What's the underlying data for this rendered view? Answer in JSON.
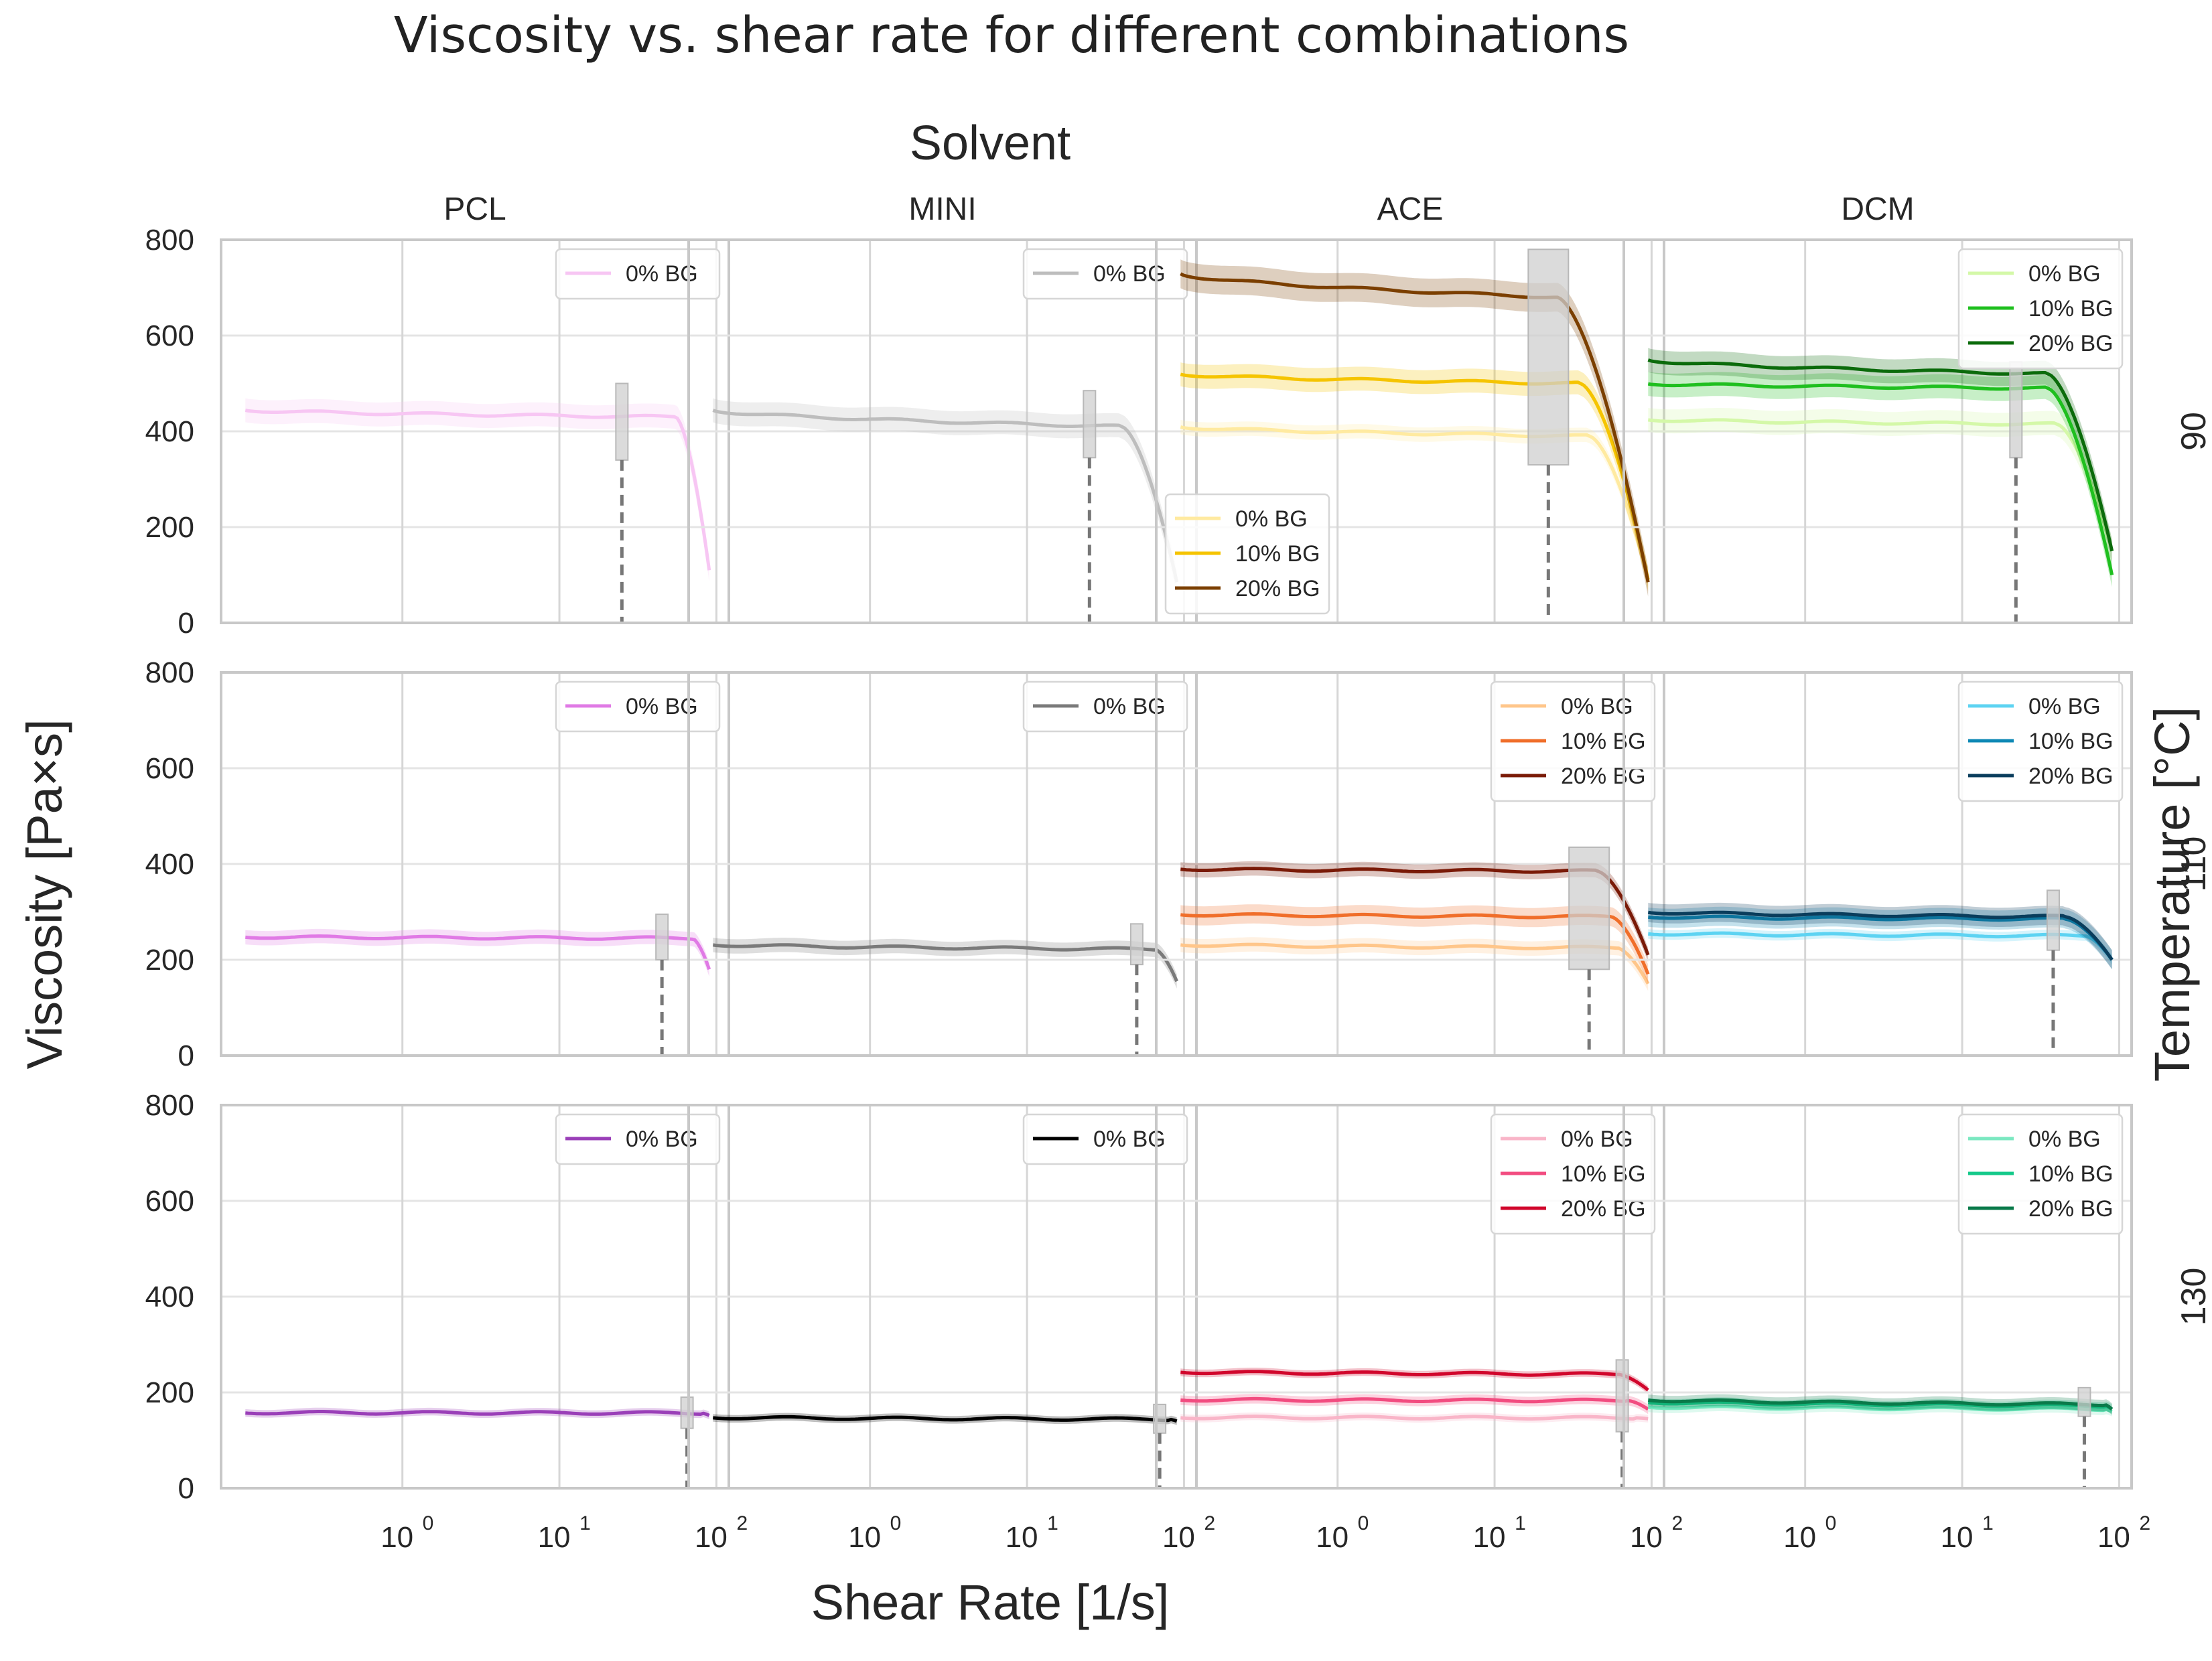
{
  "chart_data": {
    "type": "line",
    "title": "Viscosity vs. shear rate for different combinations",
    "col_header": "Solvent",
    "row_header": "Temperature [°C]",
    "xlabel": "Shear Rate [1/s]",
    "ylabel": "Viscosity [Pa×s]",
    "xscale": "log",
    "xlim": [
      0.07,
      120
    ],
    "ylim": [
      0,
      800
    ],
    "yticks": [
      "0",
      "200",
      "400",
      "600",
      "800"
    ],
    "xticks": [
      {
        "value": 1,
        "base": "10",
        "exp": "0"
      },
      {
        "value": 10,
        "base": "10",
        "exp": "1"
      },
      {
        "value": 100,
        "base": "10",
        "exp": "2"
      }
    ],
    "columns": [
      "PCL",
      "MINI",
      "ACE",
      "DCM"
    ],
    "rows": [
      "90",
      "110",
      "130"
    ],
    "panels": [
      {
        "row": 0,
        "col": 0,
        "legend": "top-right",
        "series": [
          {
            "name": "0% BG",
            "color": "#f7c6f3",
            "start": 445,
            "plateau": 430,
            "shear_knee": 55,
            "end": 110,
            "end_x": 90,
            "band": 25
          }
        ],
        "cutoff": {
          "x": 25,
          "box_ymin": 340,
          "box_ymax": 500
        }
      },
      {
        "row": 0,
        "col": 1,
        "legend": "top-right",
        "series": [
          {
            "name": "0% BG",
            "color": "#bdbdbd",
            "start": 445,
            "plateau": 410,
            "shear_knee": 40,
            "end": 85,
            "end_x": 90,
            "band": 25
          }
        ],
        "cutoff": {
          "x": 25,
          "box_ymin": 345,
          "box_ymax": 485
        }
      },
      {
        "row": 0,
        "col": 2,
        "legend": "bottom-left",
        "series": [
          {
            "name": "0% BG",
            "color": "#ffeaa0",
            "start": 410,
            "plateau": 390,
            "shear_knee": 40,
            "end": 90,
            "end_x": 95,
            "band": 15
          },
          {
            "name": "10% BG",
            "color": "#f5c400",
            "start": 520,
            "plateau": 500,
            "shear_knee": 35,
            "end": 90,
            "end_x": 95,
            "band": 25
          },
          {
            "name": "20% BG",
            "color": "#7b3f00",
            "start": 730,
            "plateau": 680,
            "shear_knee": 25,
            "end": 85,
            "end_x": 95,
            "band": 30
          }
        ],
        "cutoff": {
          "x": 22,
          "box_ymin": 330,
          "box_ymax": 780
        }
      },
      {
        "row": 0,
        "col": 3,
        "legend": "top-right",
        "series": [
          {
            "name": "0% BG",
            "color": "#d4f8a8",
            "start": 425,
            "plateau": 415,
            "shear_knee": 40,
            "end": 150,
            "end_x": 90,
            "band": 25
          },
          {
            "name": "10% BG",
            "color": "#1fbf1f",
            "start": 500,
            "plateau": 490,
            "shear_knee": 35,
            "end": 100,
            "end_x": 90,
            "band": 25
          },
          {
            "name": "20% BG",
            "color": "#0b6b0b",
            "start": 550,
            "plateau": 520,
            "shear_knee": 35,
            "end": 150,
            "end_x": 90,
            "band": 25
          }
        ],
        "cutoff": {
          "x": 22,
          "box_ymin": 345,
          "box_ymax": 545
        }
      },
      {
        "row": 1,
        "col": 0,
        "legend": "top-right",
        "series": [
          {
            "name": "0% BG",
            "color": "#e07ae5",
            "start": 248,
            "plateau": 245,
            "shear_knee": 70,
            "end": 180,
            "end_x": 90,
            "band": 15
          }
        ],
        "cutoff": {
          "x": 45,
          "box_ymin": 200,
          "box_ymax": 295
        }
      },
      {
        "row": 1,
        "col": 1,
        "legend": "top-right",
        "series": [
          {
            "name": "0% BG",
            "color": "#7a7a7a",
            "start": 232,
            "plateau": 222,
            "shear_knee": 65,
            "end": 155,
            "end_x": 90,
            "band": 15
          }
        ],
        "cutoff": {
          "x": 50,
          "box_ymin": 190,
          "box_ymax": 275
        }
      },
      {
        "row": 1,
        "col": 2,
        "legend": "top-right",
        "series": [
          {
            "name": "0% BG",
            "color": "#ffc68a",
            "start": 232,
            "plateau": 225,
            "shear_knee": 60,
            "end": 150,
            "end_x": 95,
            "band": 15
          },
          {
            "name": "10% BG",
            "color": "#f06e2a",
            "start": 295,
            "plateau": 290,
            "shear_knee": 55,
            "end": 170,
            "end_x": 95,
            "band": 20
          },
          {
            "name": "20% BG",
            "color": "#7a1a07",
            "start": 390,
            "plateau": 385,
            "shear_knee": 45,
            "end": 210,
            "end_x": 95,
            "band": 15
          }
        ],
        "cutoff": {
          "x": 40,
          "box_ymin": 180,
          "box_ymax": 435
        }
      },
      {
        "row": 1,
        "col": 3,
        "legend": "top-right",
        "series": [
          {
            "name": "0% BG",
            "color": "#5dd3f2",
            "start": 255,
            "plateau": 250,
            "shear_knee": 60,
            "end": 200,
            "end_x": 90,
            "band": 10
          },
          {
            "name": "10% BG",
            "color": "#0e88b5",
            "start": 290,
            "plateau": 285,
            "shear_knee": 45,
            "end": 200,
            "end_x": 90,
            "band": 20
          },
          {
            "name": "20% BG",
            "color": "#0a3d5c",
            "start": 300,
            "plateau": 290,
            "shear_knee": 45,
            "end": 200,
            "end_x": 90,
            "band": 20
          }
        ],
        "cutoff": {
          "x": 38,
          "box_ymin": 220,
          "box_ymax": 345
        }
      },
      {
        "row": 2,
        "col": 0,
        "legend": "top-right",
        "series": [
          {
            "name": "0% BG",
            "color": "#9a3fb8",
            "start": 158,
            "plateau": 157,
            "shear_knee": 80,
            "end": 152,
            "end_x": 90,
            "band": 8
          }
        ],
        "cutoff": {
          "x": 65,
          "box_ymin": 125,
          "box_ymax": 190
        }
      },
      {
        "row": 2,
        "col": 1,
        "legend": "top-right",
        "series": [
          {
            "name": "0% BG",
            "color": "#000000",
            "start": 148,
            "plateau": 144,
            "shear_knee": 80,
            "end": 140,
            "end_x": 90,
            "band": 8
          }
        ],
        "cutoff": {
          "x": 70,
          "box_ymin": 115,
          "box_ymax": 175
        }
      },
      {
        "row": 2,
        "col": 2,
        "legend": "top-right",
        "series": [
          {
            "name": "0% BG",
            "color": "#f9b5c8",
            "start": 148,
            "plateau": 147,
            "shear_knee": 80,
            "end": 145,
            "end_x": 95,
            "band": 8
          },
          {
            "name": "10% BG",
            "color": "#f24c80",
            "start": 185,
            "plateau": 183,
            "shear_knee": 70,
            "end": 165,
            "end_x": 95,
            "band": 10
          },
          {
            "name": "20% BG",
            "color": "#d1062c",
            "start": 243,
            "plateau": 238,
            "shear_knee": 60,
            "end": 205,
            "end_x": 95,
            "band": 8
          }
        ],
        "cutoff": {
          "x": 65,
          "box_ymin": 118,
          "box_ymax": 268
        }
      },
      {
        "row": 2,
        "col": 3,
        "legend": "top-right",
        "series": [
          {
            "name": "0% BG",
            "color": "#7be8c1",
            "start": 170,
            "plateau": 165,
            "shear_knee": 80,
            "end": 160,
            "end_x": 90,
            "band": 10
          },
          {
            "name": "10% BG",
            "color": "#14c98a",
            "start": 180,
            "plateau": 172,
            "shear_knee": 80,
            "end": 165,
            "end_x": 90,
            "band": 10
          },
          {
            "name": "20% BG",
            "color": "#0a7a4a",
            "start": 185,
            "plateau": 175,
            "shear_knee": 80,
            "end": 165,
            "end_x": 90,
            "band": 12
          }
        ],
        "cutoff": {
          "x": 60,
          "box_ymin": 150,
          "box_ymax": 210
        }
      }
    ]
  }
}
